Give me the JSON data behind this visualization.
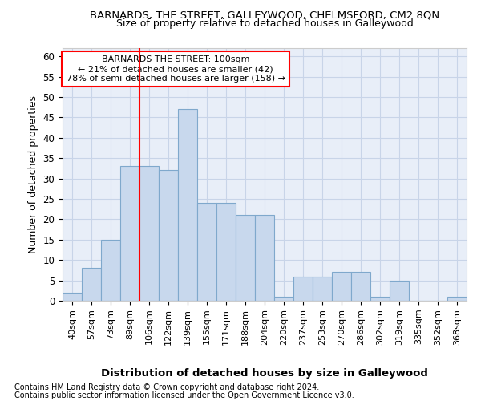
{
  "title1": "BARNARDS, THE STREET, GALLEYWOOD, CHELMSFORD, CM2 8QN",
  "title2": "Size of property relative to detached houses in Galleywood",
  "xlabel": "Distribution of detached houses by size in Galleywood",
  "ylabel": "Number of detached properties",
  "categories": [
    "40sqm",
    "57sqm",
    "73sqm",
    "89sqm",
    "106sqm",
    "122sqm",
    "139sqm",
    "155sqm",
    "171sqm",
    "188sqm",
    "204sqm",
    "220sqm",
    "237sqm",
    "253sqm",
    "270sqm",
    "286sqm",
    "302sqm",
    "319sqm",
    "335sqm",
    "352sqm",
    "368sqm"
  ],
  "values": [
    2,
    8,
    15,
    33,
    33,
    32,
    47,
    24,
    24,
    21,
    21,
    1,
    6,
    6,
    7,
    7,
    1,
    5,
    0,
    0,
    1
  ],
  "bar_color": "#c8d8ed",
  "bar_edge_color": "#7fa8cc",
  "grid_color": "#c8d4e8",
  "background_color": "#e8eef8",
  "ref_line_x": 4.0,
  "annotation_title": "BARNARDS THE STREET: 100sqm",
  "annotation_line1": "← 21% of detached houses are smaller (42)",
  "annotation_line2": "78% of semi-detached houses are larger (158) →",
  "footer1": "Contains HM Land Registry data © Crown copyright and database right 2024.",
  "footer2": "Contains public sector information licensed under the Open Government Licence v3.0.",
  "ylim": [
    0,
    62
  ],
  "yticks": [
    0,
    5,
    10,
    15,
    20,
    25,
    30,
    35,
    40,
    45,
    50,
    55,
    60
  ]
}
